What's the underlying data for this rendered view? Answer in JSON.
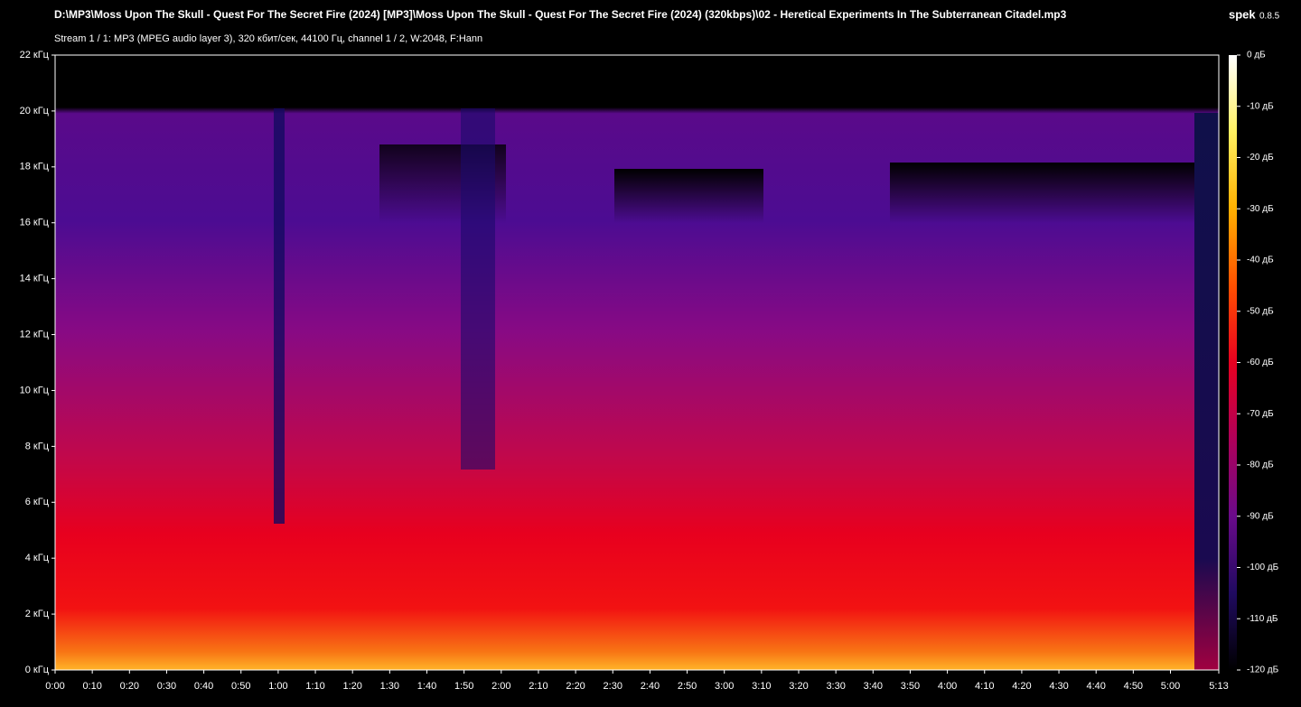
{
  "chart_data": {
    "type": "spectrogram",
    "title": "D:\\MP3\\Moss Upon The Skull - Quest For The Secret Fire (2024) [MP3]\\Moss Upon The Skull - Quest For The Secret Fire (2024) (320kbps)\\02 - Heretical Experiments In The Subterranean Citadel.mp3",
    "subtitle": "Stream 1 / 1: MP3 (MPEG audio layer 3), 320 кбит/сек, 44100 Гц, channel 1 / 2, W:2048, F:Hann",
    "app_name": "spek",
    "app_version": "0.8.5",
    "xlim": [
      0,
      313
    ],
    "xticks": [
      {
        "value": 0,
        "label": "0:00"
      },
      {
        "value": 10,
        "label": "0:10"
      },
      {
        "value": 20,
        "label": "0:20"
      },
      {
        "value": 30,
        "label": "0:30"
      },
      {
        "value": 40,
        "label": "0:40"
      },
      {
        "value": 50,
        "label": "0:50"
      },
      {
        "value": 60,
        "label": "1:00"
      },
      {
        "value": 70,
        "label": "1:10"
      },
      {
        "value": 80,
        "label": "1:20"
      },
      {
        "value": 90,
        "label": "1:30"
      },
      {
        "value": 100,
        "label": "1:40"
      },
      {
        "value": 110,
        "label": "1:50"
      },
      {
        "value": 120,
        "label": "2:00"
      },
      {
        "value": 130,
        "label": "2:10"
      },
      {
        "value": 140,
        "label": "2:20"
      },
      {
        "value": 150,
        "label": "2:30"
      },
      {
        "value": 160,
        "label": "2:40"
      },
      {
        "value": 170,
        "label": "2:50"
      },
      {
        "value": 180,
        "label": "3:00"
      },
      {
        "value": 190,
        "label": "3:10"
      },
      {
        "value": 200,
        "label": "3:20"
      },
      {
        "value": 210,
        "label": "3:30"
      },
      {
        "value": 220,
        "label": "3:40"
      },
      {
        "value": 230,
        "label": "3:50"
      },
      {
        "value": 240,
        "label": "4:00"
      },
      {
        "value": 250,
        "label": "4:10"
      },
      {
        "value": 260,
        "label": "4:20"
      },
      {
        "value": 270,
        "label": "4:30"
      },
      {
        "value": 280,
        "label": "4:40"
      },
      {
        "value": 290,
        "label": "4:50"
      },
      {
        "value": 300,
        "label": "5:00"
      },
      {
        "value": 313,
        "label": "5:13"
      }
    ],
    "ylim": [
      0,
      22
    ],
    "yticks": [
      {
        "value": 0,
        "label": "0 кГц"
      },
      {
        "value": 2,
        "label": "2 кГц"
      },
      {
        "value": 4,
        "label": "4 кГц"
      },
      {
        "value": 6,
        "label": "6 кГц"
      },
      {
        "value": 8,
        "label": "8 кГц"
      },
      {
        "value": 10,
        "label": "10 кГц"
      },
      {
        "value": 12,
        "label": "12 кГц"
      },
      {
        "value": 14,
        "label": "14 кГц"
      },
      {
        "value": 16,
        "label": "16 кГц"
      },
      {
        "value": 18,
        "label": "18 кГц"
      },
      {
        "value": 20,
        "label": "20 кГц"
      },
      {
        "value": 22,
        "label": "22 кГц"
      }
    ],
    "colorbar": {
      "zlim": [
        -120,
        0
      ],
      "colors": [
        "#ffffff",
        "#fff060",
        "#ffb000",
        "#ff5000",
        "#e80020",
        "#b0005a",
        "#6a0a8a",
        "#200a60",
        "#000000"
      ],
      "ticks": [
        {
          "value": 0,
          "label": "0 дБ"
        },
        {
          "value": -10,
          "label": "-10 дБ"
        },
        {
          "value": -20,
          "label": "-20 дБ"
        },
        {
          "value": -30,
          "label": "-30 дБ"
        },
        {
          "value": -40,
          "label": "-40 дБ"
        },
        {
          "value": -50,
          "label": "-50 дБ"
        },
        {
          "value": -60,
          "label": "-60 дБ"
        },
        {
          "value": -70,
          "label": "-70 дБ"
        },
        {
          "value": -80,
          "label": "-80 дБ"
        },
        {
          "value": -90,
          "label": "-90 дБ"
        },
        {
          "value": -100,
          "label": "-100 дБ"
        },
        {
          "value": -110,
          "label": "-110 дБ"
        },
        {
          "value": -120,
          "label": "-120 дБ"
        }
      ]
    }
  }
}
